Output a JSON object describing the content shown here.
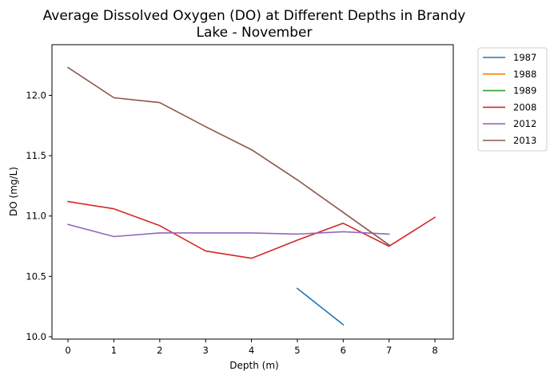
{
  "chart_data": {
    "type": "line",
    "title_lines": [
      "Average Dissolved Oxygen (DO) at Different Depths in Brandy",
      "Lake - November"
    ],
    "xlabel": "Depth (m)",
    "ylabel": "DO (mg/L)",
    "xlim": [
      -0.35,
      8.4
    ],
    "ylim": [
      9.98,
      12.42
    ],
    "xticks": [
      0,
      1,
      2,
      3,
      4,
      5,
      6,
      7,
      8
    ],
    "yticks": [
      10.0,
      10.5,
      11.0,
      11.5,
      12.0
    ],
    "ytick_labels": [
      "10.0",
      "10.5",
      "11.0",
      "11.5",
      "12.0"
    ],
    "grid": false,
    "legend_position": "outside-top-right",
    "series": [
      {
        "name": "1987",
        "color": "#1f77b4",
        "x": [
          5,
          6
        ],
        "y": [
          10.4,
          10.1
        ]
      },
      {
        "name": "1988",
        "color": "#ff7f0e",
        "x": [],
        "y": []
      },
      {
        "name": "1989",
        "color": "#2ca02c",
        "x": [],
        "y": []
      },
      {
        "name": "2008",
        "color": "#d62728",
        "x": [
          0,
          1,
          2,
          3,
          4,
          5,
          6,
          7,
          8
        ],
        "y": [
          11.12,
          11.06,
          10.92,
          10.71,
          10.65,
          10.8,
          10.94,
          10.75,
          10.99
        ]
      },
      {
        "name": "2012",
        "color": "#9467bd",
        "x": [
          0,
          1,
          2,
          3,
          4,
          5,
          6,
          7
        ],
        "y": [
          10.93,
          10.83,
          10.86,
          10.86,
          10.86,
          10.85,
          10.87,
          10.85
        ]
      },
      {
        "name": "2013",
        "color": "#8c564b",
        "x": [
          0,
          1,
          2,
          3,
          4,
          5,
          6,
          7
        ],
        "y": [
          12.23,
          11.98,
          11.94,
          11.74,
          11.55,
          11.3,
          11.03,
          10.76
        ]
      }
    ]
  }
}
